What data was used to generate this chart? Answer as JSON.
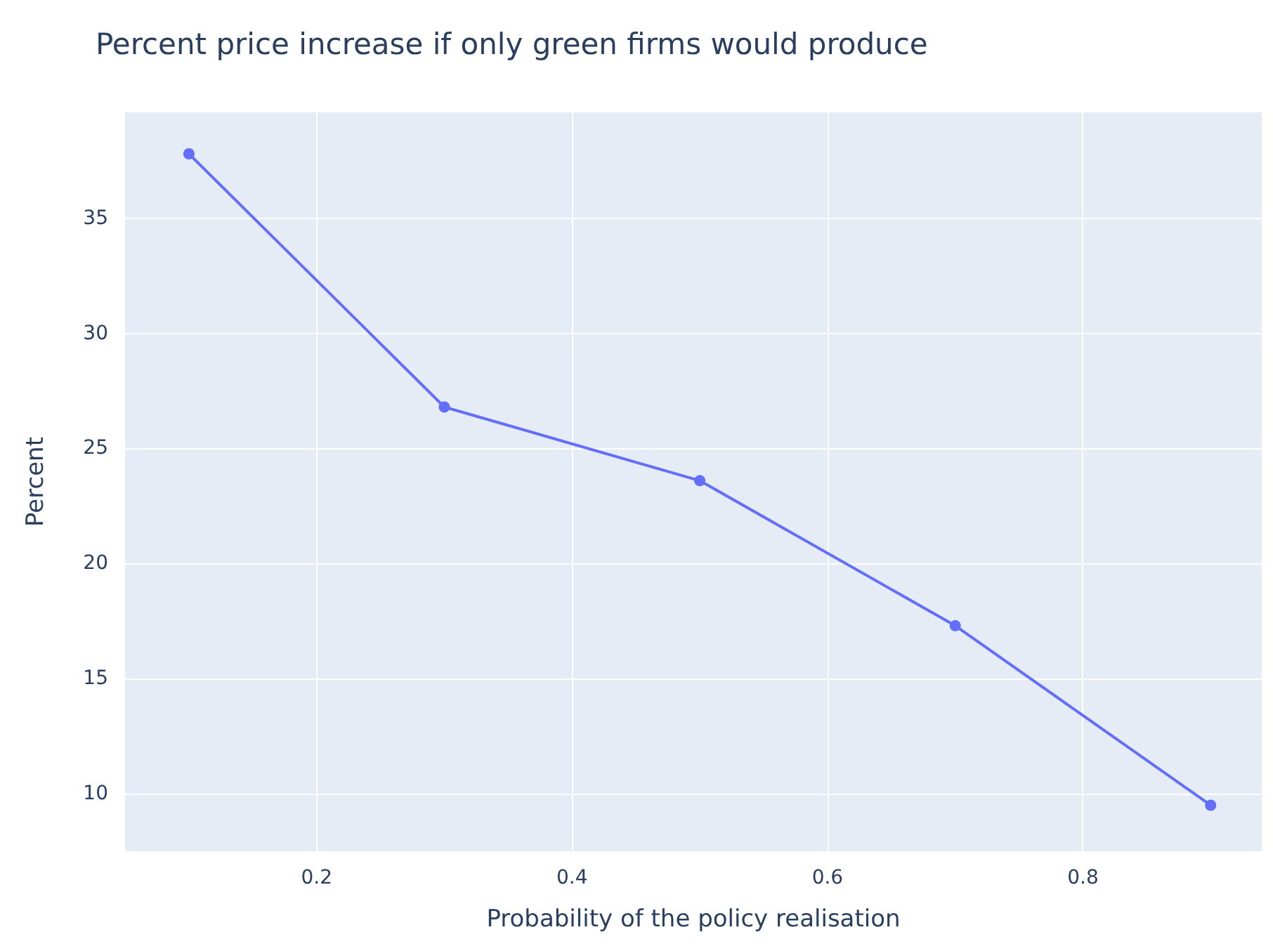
{
  "chart_data": {
    "type": "line",
    "title": "Percent price increase if only green firms would produce",
    "xlabel": "Probability of the policy realisation",
    "ylabel": "Percent",
    "x": [
      0.1,
      0.3,
      0.5,
      0.7,
      0.9
    ],
    "series": [
      {
        "color": "#636efa",
        "values": [
          37.8,
          26.8,
          23.6,
          17.3,
          9.5
        ]
      }
    ],
    "xlim": [
      0.05,
      0.94
    ],
    "xticks": [
      0.2,
      0.4,
      0.6,
      0.8
    ],
    "ylim": [
      7.5,
      39.6
    ],
    "yticks": [
      10,
      15,
      20,
      25,
      30,
      35
    ],
    "grid": true,
    "marker": "circle",
    "line_style": "solid"
  }
}
